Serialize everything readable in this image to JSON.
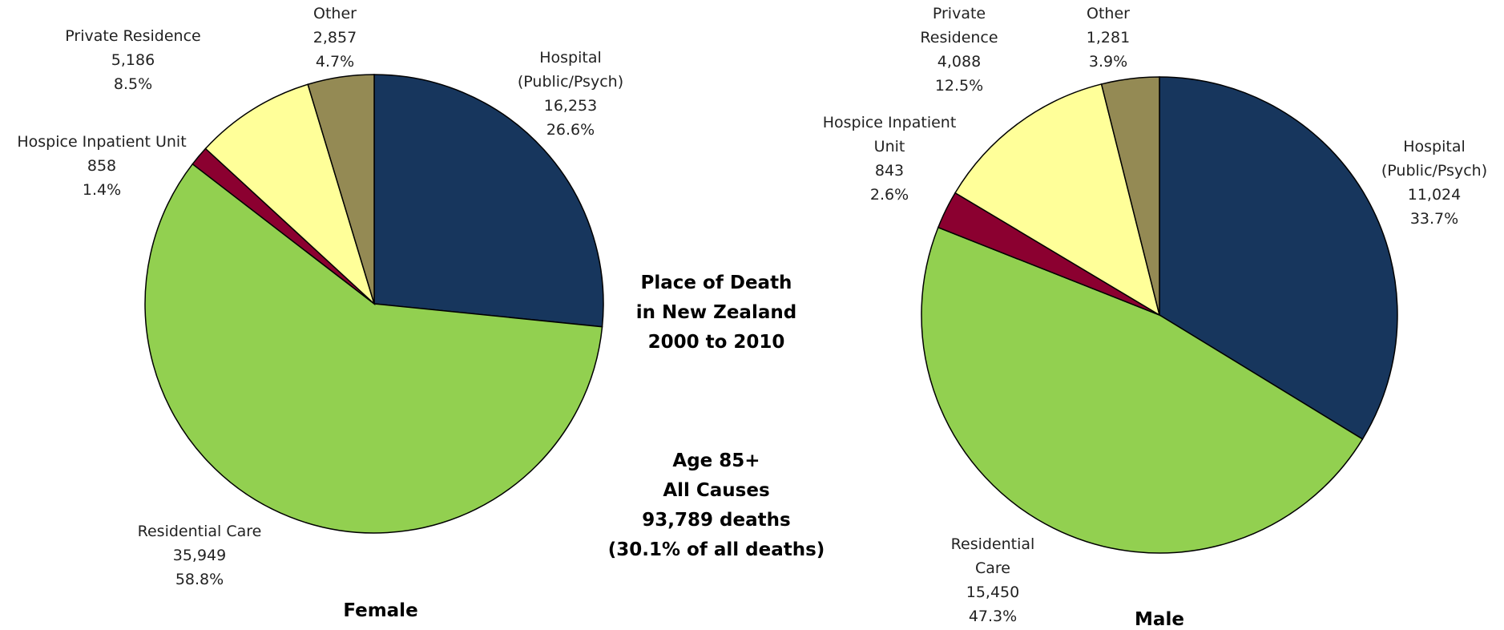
{
  "title_lines": [
    "Place of Death",
    "in New Zealand",
    "2000 to 2010"
  ],
  "annotation_lines": [
    "Age 85+",
    "All Causes",
    "93,789 deaths",
    "(30.1% of all deaths)"
  ],
  "chart_data": [
    {
      "type": "pie",
      "title": "Female",
      "categories": [
        "Hospital (Public/Psych)",
        "Residential Care",
        "Hospice Inpatient Unit",
        "Private Residence",
        "Other"
      ],
      "values": [
        16253,
        35949,
        858,
        5186,
        2857
      ],
      "value_labels": [
        "16,253",
        "35,949",
        "858",
        "5,186",
        "2,857"
      ],
      "percentages": [
        26.6,
        58.8,
        1.4,
        8.5,
        4.7
      ],
      "percent_labels": [
        "26.6%",
        "58.8%",
        "1.4%",
        "8.5%",
        "4.7%"
      ],
      "colors": [
        "#17365d",
        "#92d050",
        "#8b0030",
        "#ffff99",
        "#948a54"
      ]
    },
    {
      "type": "pie",
      "title": "Male",
      "categories": [
        "Hospital (Public/Psych)",
        "Residential Care",
        "Hospice Inpatient Unit",
        "Private Residence",
        "Other"
      ],
      "values": [
        11024,
        15450,
        843,
        4088,
        1281
      ],
      "value_labels": [
        "11,024",
        "15,450",
        "843",
        "4,088",
        "1,281"
      ],
      "percentages": [
        33.7,
        47.3,
        2.6,
        12.5,
        3.9
      ],
      "percent_labels": [
        "33.7%",
        "47.3%",
        "2.6%",
        "12.5%",
        "3.9%"
      ],
      "colors": [
        "#17365d",
        "#92d050",
        "#8b0030",
        "#ffff99",
        "#948a54"
      ]
    }
  ]
}
